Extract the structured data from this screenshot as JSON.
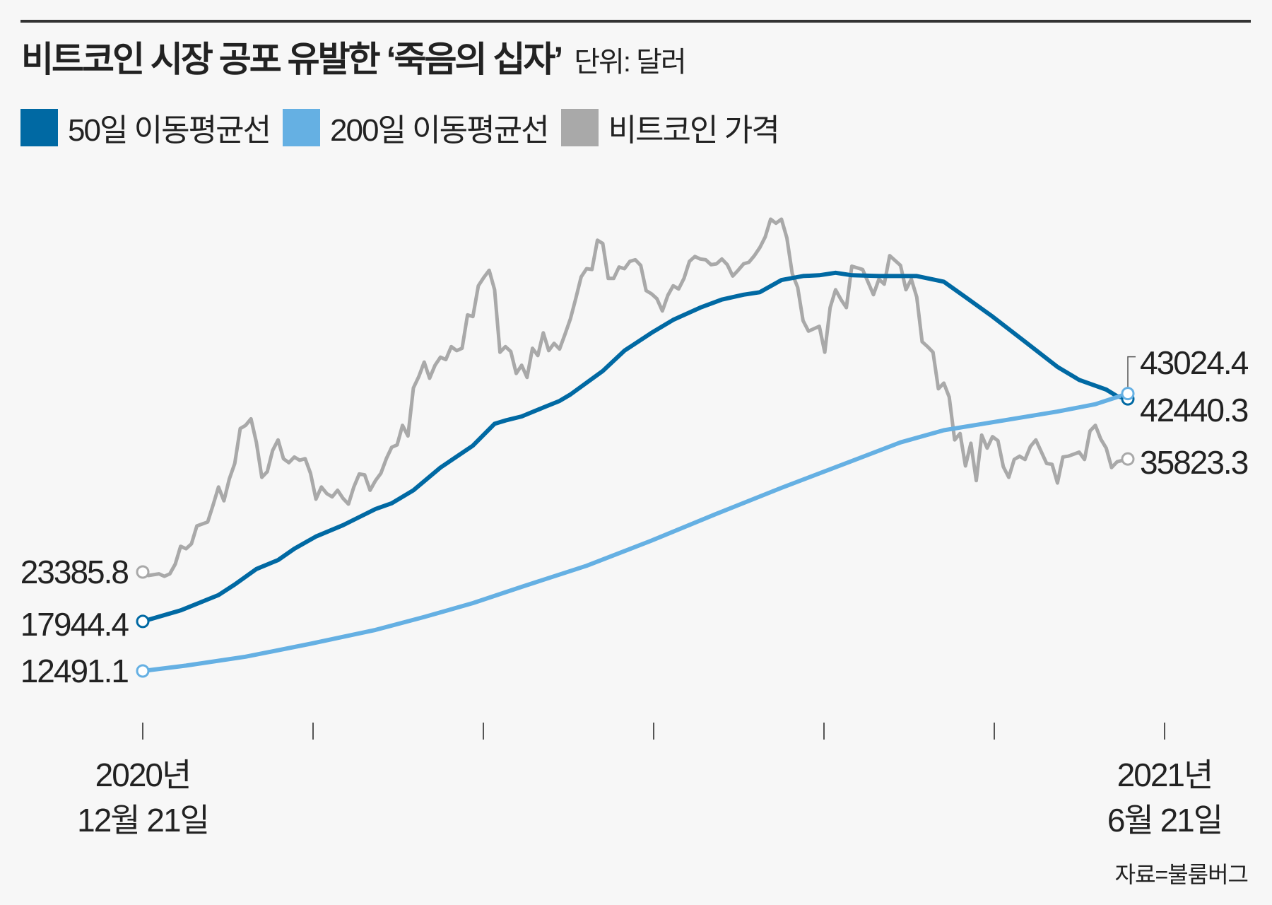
{
  "title": "비트코인 시장 공포 유발한 ‘죽음의 십자’",
  "unit": "단위: 달러",
  "source": "자료=불룸버그",
  "legend": [
    {
      "label": "50일 이동평균선",
      "color": "#0069a3"
    },
    {
      "label": "200일 이동평균선",
      "color": "#65b0e3"
    },
    {
      "label": "비트코인 가격",
      "color": "#a9a9a9"
    }
  ],
  "x_labels": {
    "start": [
      "2020년",
      "12월 21일"
    ],
    "end": [
      "2021년",
      "6월 21일"
    ]
  },
  "chart_data": {
    "type": "line",
    "title": "비트코인 시장 공포 유발한 ‘죽음의 십자’",
    "unit": "달러",
    "x_range": [
      "2020-12-21",
      "2021-06-21"
    ],
    "y_axis_visible": false,
    "grid": false,
    "legend_position": "top-left",
    "series": [
      {
        "name": "비트코인 가격",
        "color": "#a9a9a9",
        "start_label": "23385.8",
        "end_label": "35823.3",
        "points": [
          [
            "2020-12-21",
            23385.8
          ],
          [
            "2020-12-22",
            23000
          ],
          [
            "2020-12-24",
            23180
          ],
          [
            "2020-12-25",
            22910
          ],
          [
            "2020-12-26",
            23180
          ],
          [
            "2020-12-27",
            24250
          ],
          [
            "2020-12-28",
            26210
          ],
          [
            "2020-12-29",
            25950
          ],
          [
            "2020-12-30",
            26480
          ],
          [
            "2020-12-31",
            28450
          ],
          [
            "2021-01-02",
            28890
          ],
          [
            "2021-01-03",
            30770
          ],
          [
            "2021-01-04",
            32740
          ],
          [
            "2021-01-05",
            31220
          ],
          [
            "2021-01-06",
            33630
          ],
          [
            "2021-01-07",
            35330
          ],
          [
            "2021-01-08",
            39170
          ],
          [
            "2021-01-09",
            39530
          ],
          [
            "2021-01-10",
            40240
          ],
          [
            "2021-01-11",
            37650
          ],
          [
            "2021-01-12",
            33810
          ],
          [
            "2021-01-13",
            34430
          ],
          [
            "2021-01-14",
            36760
          ],
          [
            "2021-01-15",
            37920
          ],
          [
            "2021-01-16",
            35860
          ],
          [
            "2021-01-17",
            35420
          ],
          [
            "2021-01-18",
            36040
          ],
          [
            "2021-01-19",
            35680
          ],
          [
            "2021-01-20",
            35860
          ],
          [
            "2021-01-21",
            34250
          ],
          [
            "2021-01-22",
            31400
          ],
          [
            "2021-01-23",
            32740
          ],
          [
            "2021-01-24",
            32020
          ],
          [
            "2021-01-25",
            31660
          ],
          [
            "2021-01-26",
            32380
          ],
          [
            "2021-01-27",
            31490
          ],
          [
            "2021-01-28",
            30860
          ],
          [
            "2021-01-29",
            32740
          ],
          [
            "2021-01-30",
            34170
          ],
          [
            "2021-01-31",
            34080
          ],
          [
            "2021-02-01",
            32380
          ],
          [
            "2021-02-02",
            33450
          ],
          [
            "2021-02-03",
            34250
          ],
          [
            "2021-02-04",
            35860
          ],
          [
            "2021-02-05",
            37110
          ],
          [
            "2021-02-06",
            37380
          ],
          [
            "2021-02-07",
            39530
          ],
          [
            "2021-02-08",
            38360
          ],
          [
            "2021-02-09",
            43640
          ],
          [
            "2021-02-10",
            44890
          ],
          [
            "2021-02-11",
            46490
          ],
          [
            "2021-02-12",
            44710
          ],
          [
            "2021-02-13",
            46140
          ],
          [
            "2021-02-14",
            47030
          ],
          [
            "2021-02-15",
            46760
          ],
          [
            "2021-02-16",
            48190
          ],
          [
            "2021-02-17",
            47750
          ],
          [
            "2021-02-18",
            48010
          ],
          [
            "2021-02-19",
            51680
          ],
          [
            "2021-02-20",
            51500
          ],
          [
            "2021-02-21",
            54890
          ],
          [
            "2021-02-22",
            55790
          ],
          [
            "2021-02-23",
            56590
          ],
          [
            "2021-02-24",
            54450
          ],
          [
            "2021-02-25",
            47570
          ],
          [
            "2021-02-26",
            48190
          ],
          [
            "2021-02-27",
            47660
          ],
          [
            "2021-02-28",
            45240
          ],
          [
            "2021-03-01",
            46140
          ],
          [
            "2021-03-02",
            44800
          ],
          [
            "2021-03-03",
            48010
          ],
          [
            "2021-03-04",
            47210
          ],
          [
            "2021-03-05",
            49710
          ],
          [
            "2021-03-06",
            47750
          ],
          [
            "2021-03-07",
            48550
          ],
          [
            "2021-03-08",
            47920
          ],
          [
            "2021-03-09",
            49530
          ],
          [
            "2021-03-10",
            51230
          ],
          [
            "2021-03-11",
            53460
          ],
          [
            "2021-03-12",
            55870
          ],
          [
            "2021-03-13",
            56770
          ],
          [
            "2021-03-14",
            56680
          ],
          [
            "2021-03-15",
            59900
          ],
          [
            "2021-03-16",
            59540
          ],
          [
            "2021-03-17",
            55700
          ],
          [
            "2021-03-18",
            55700
          ],
          [
            "2021-03-19",
            56950
          ],
          [
            "2021-03-20",
            56770
          ],
          [
            "2021-03-21",
            57570
          ],
          [
            "2021-03-22",
            57750
          ],
          [
            "2021-03-23",
            57130
          ],
          [
            "2021-03-24",
            54360
          ],
          [
            "2021-03-25",
            54000
          ],
          [
            "2021-03-26",
            53460
          ],
          [
            "2021-03-27",
            52120
          ],
          [
            "2021-03-28",
            53820
          ],
          [
            "2021-03-29",
            54890
          ],
          [
            "2021-03-30",
            54540
          ],
          [
            "2021-03-31",
            55700
          ],
          [
            "2021-04-01",
            57570
          ],
          [
            "2021-04-02",
            58110
          ],
          [
            "2021-04-03",
            57840
          ],
          [
            "2021-04-04",
            57750
          ],
          [
            "2021-04-05",
            57210
          ],
          [
            "2021-04-06",
            57300
          ],
          [
            "2021-04-07",
            57840
          ],
          [
            "2021-04-08",
            57210
          ],
          [
            "2021-04-09",
            55960
          ],
          [
            "2021-04-10",
            56590
          ],
          [
            "2021-04-11",
            57300
          ],
          [
            "2021-04-12",
            57480
          ],
          [
            "2021-04-13",
            58200
          ],
          [
            "2021-04-14",
            59090
          ],
          [
            "2021-04-15",
            60250
          ],
          [
            "2021-04-16",
            62220
          ],
          [
            "2021-04-17",
            61770
          ],
          [
            "2021-04-18",
            62220
          ],
          [
            "2021-04-19",
            60160
          ],
          [
            "2021-04-20",
            56230
          ],
          [
            "2021-04-21",
            54710
          ],
          [
            "2021-04-22",
            51050
          ],
          [
            "2021-04-23",
            49890
          ],
          [
            "2021-04-25",
            50430
          ],
          [
            "2021-04-26",
            47570
          ],
          [
            "2021-04-27",
            52480
          ],
          [
            "2021-04-28",
            54450
          ],
          [
            "2021-04-29",
            53370
          ],
          [
            "2021-04-30",
            52480
          ],
          [
            "2021-05-01",
            57040
          ],
          [
            "2021-05-03",
            56680
          ],
          [
            "2021-05-05",
            53910
          ],
          [
            "2021-05-06",
            55610
          ],
          [
            "2021-05-07",
            55070
          ],
          [
            "2021-05-08",
            58200
          ],
          [
            "2021-05-10",
            57130
          ],
          [
            "2021-05-11",
            54450
          ],
          [
            "2021-05-12",
            55610
          ],
          [
            "2021-05-13",
            53640
          ],
          [
            "2021-05-14",
            48730
          ],
          [
            "2021-05-15",
            48190
          ],
          [
            "2021-05-16",
            47570
          ],
          [
            "2021-05-17",
            43550
          ],
          [
            "2021-05-18",
            44170
          ],
          [
            "2021-05-19",
            42650
          ],
          [
            "2021-05-20",
            37920
          ],
          [
            "2021-05-21",
            38630
          ],
          [
            "2021-05-22",
            35060
          ],
          [
            "2021-05-23",
            37560
          ],
          [
            "2021-05-24",
            33450
          ],
          [
            "2021-05-25",
            38450
          ],
          [
            "2021-05-26",
            37020
          ],
          [
            "2021-05-27",
            38280
          ],
          [
            "2021-05-28",
            37830
          ],
          [
            "2021-05-29",
            34970
          ],
          [
            "2021-05-30",
            33810
          ],
          [
            "2021-05-31",
            35770
          ],
          [
            "2021-06-01",
            36130
          ],
          [
            "2021-06-02",
            35770
          ],
          [
            "2021-06-03",
            37200
          ],
          [
            "2021-06-04",
            37920
          ],
          [
            "2021-06-06",
            35330
          ],
          [
            "2021-06-07",
            35240
          ],
          [
            "2021-06-08",
            33180
          ],
          [
            "2021-06-09",
            36040
          ],
          [
            "2021-06-10",
            36130
          ],
          [
            "2021-06-12",
            36580
          ],
          [
            "2021-06-13",
            35770
          ],
          [
            "2021-06-14",
            38900
          ],
          [
            "2021-06-15",
            39530
          ],
          [
            "2021-06-16",
            38010
          ],
          [
            "2021-06-17",
            37020
          ],
          [
            "2021-06-18",
            34880
          ],
          [
            "2021-06-19",
            35510
          ],
          [
            "2021-06-21",
            35823.3
          ]
        ]
      },
      {
        "name": "50일 이동평균선",
        "color": "#0069a3",
        "start_label": "17944.4",
        "end_label": "42440.3",
        "points": [
          [
            "2020-12-21",
            17944.4
          ],
          [
            "2020-12-28",
            19160
          ],
          [
            "2021-01-04",
            20850
          ],
          [
            "2021-01-07",
            22010
          ],
          [
            "2021-01-11",
            23710
          ],
          [
            "2021-01-15",
            24700
          ],
          [
            "2021-01-18",
            25950
          ],
          [
            "2021-01-22",
            27290
          ],
          [
            "2021-01-27",
            28540
          ],
          [
            "2021-02-02",
            30320
          ],
          [
            "2021-02-05",
            30950
          ],
          [
            "2021-02-09",
            32380
          ],
          [
            "2021-02-14",
            34880
          ],
          [
            "2021-02-20",
            37290
          ],
          [
            "2021-02-24",
            39700
          ],
          [
            "2021-02-26",
            40060
          ],
          [
            "2021-03-01",
            40510
          ],
          [
            "2021-03-05",
            41490
          ],
          [
            "2021-03-08",
            42210
          ],
          [
            "2021-03-10",
            42920
          ],
          [
            "2021-03-16",
            45510
          ],
          [
            "2021-03-20",
            47750
          ],
          [
            "2021-03-25",
            49710
          ],
          [
            "2021-03-29",
            51140
          ],
          [
            "2021-04-03",
            52480
          ],
          [
            "2021-04-07",
            53370
          ],
          [
            "2021-04-11",
            53910
          ],
          [
            "2021-04-14",
            54180
          ],
          [
            "2021-04-18",
            55520
          ],
          [
            "2021-04-22",
            55960
          ],
          [
            "2021-04-25",
            56050
          ],
          [
            "2021-04-28",
            56320
          ],
          [
            "2021-05-01",
            56050
          ],
          [
            "2021-05-06",
            55960
          ],
          [
            "2021-05-13",
            55960
          ],
          [
            "2021-05-18",
            55340
          ],
          [
            "2021-05-22",
            53640
          ],
          [
            "2021-05-27",
            51500
          ],
          [
            "2021-06-02",
            48730
          ],
          [
            "2021-06-08",
            45960
          ],
          [
            "2021-06-12",
            44530
          ],
          [
            "2021-06-17",
            43460
          ],
          [
            "2021-06-19",
            42740
          ],
          [
            "2021-06-21",
            42440.3
          ]
        ]
      },
      {
        "name": "200일 이동평균선",
        "color": "#65b0e3",
        "start_label": "12491.1",
        "end_label": "43024.4",
        "points": [
          [
            "2020-12-21",
            12491.1
          ],
          [
            "2020-12-29",
            13080
          ],
          [
            "2021-01-09",
            14060
          ],
          [
            "2021-01-21",
            15490
          ],
          [
            "2021-02-02",
            17010
          ],
          [
            "2021-02-11",
            18440
          ],
          [
            "2021-02-20",
            19960
          ],
          [
            "2021-03-01",
            21750
          ],
          [
            "2021-03-13",
            24070
          ],
          [
            "2021-03-25",
            26840
          ],
          [
            "2021-04-06",
            29790
          ],
          [
            "2021-04-18",
            32650
          ],
          [
            "2021-05-01",
            35600
          ],
          [
            "2021-05-10",
            37650
          ],
          [
            "2021-05-18",
            38990
          ],
          [
            "2021-05-28",
            39970
          ],
          [
            "2021-06-08",
            41040
          ],
          [
            "2021-06-15",
            41850
          ],
          [
            "2021-06-21",
            43024.4
          ]
        ]
      }
    ]
  }
}
